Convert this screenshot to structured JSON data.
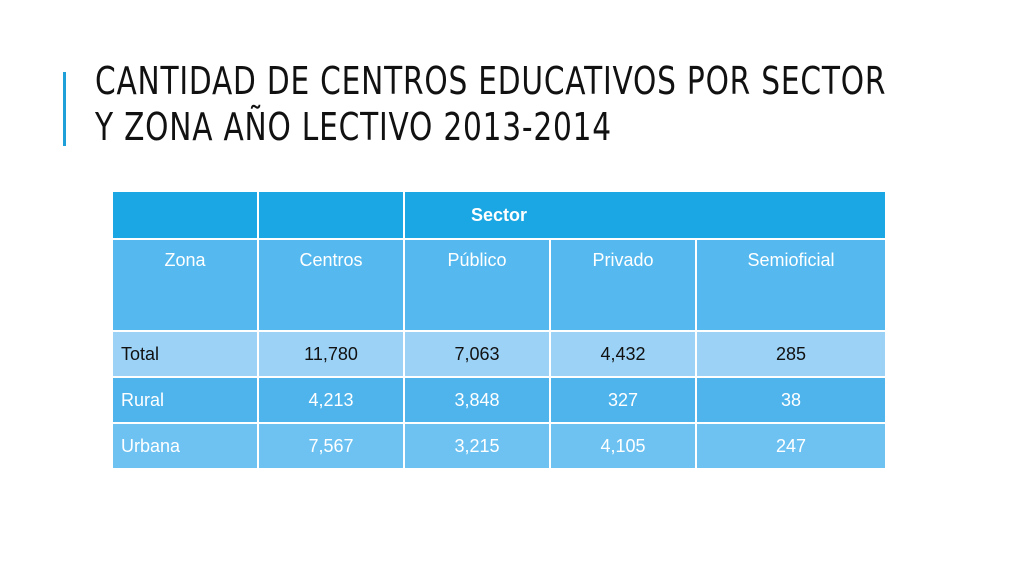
{
  "slide": {
    "title_lines": [
      "CANTIDAD DE CENTROS EDUCATIVOS POR SECTOR",
      "Y ZONA AÑO LECTIVO 2013-2014"
    ]
  },
  "table": {
    "group_header": "Sector",
    "columns": [
      "Zona",
      "Centros",
      "Público",
      "Privado",
      "Semioficial"
    ],
    "rows": [
      [
        "Total",
        "11,780",
        "7,063",
        "4,432",
        "285"
      ],
      [
        "Rural",
        "4,213",
        "3,848",
        "327",
        "38"
      ],
      [
        "Urbana",
        "7,567",
        "3,215",
        "4,105",
        "247"
      ]
    ]
  },
  "colors": {
    "accent": "#1fa0d8",
    "header_dark": "#1aa7e3",
    "header_mid": "#55b9ef",
    "row_total": "#9cd2f6",
    "row_light": "#4fb4ec"
  }
}
